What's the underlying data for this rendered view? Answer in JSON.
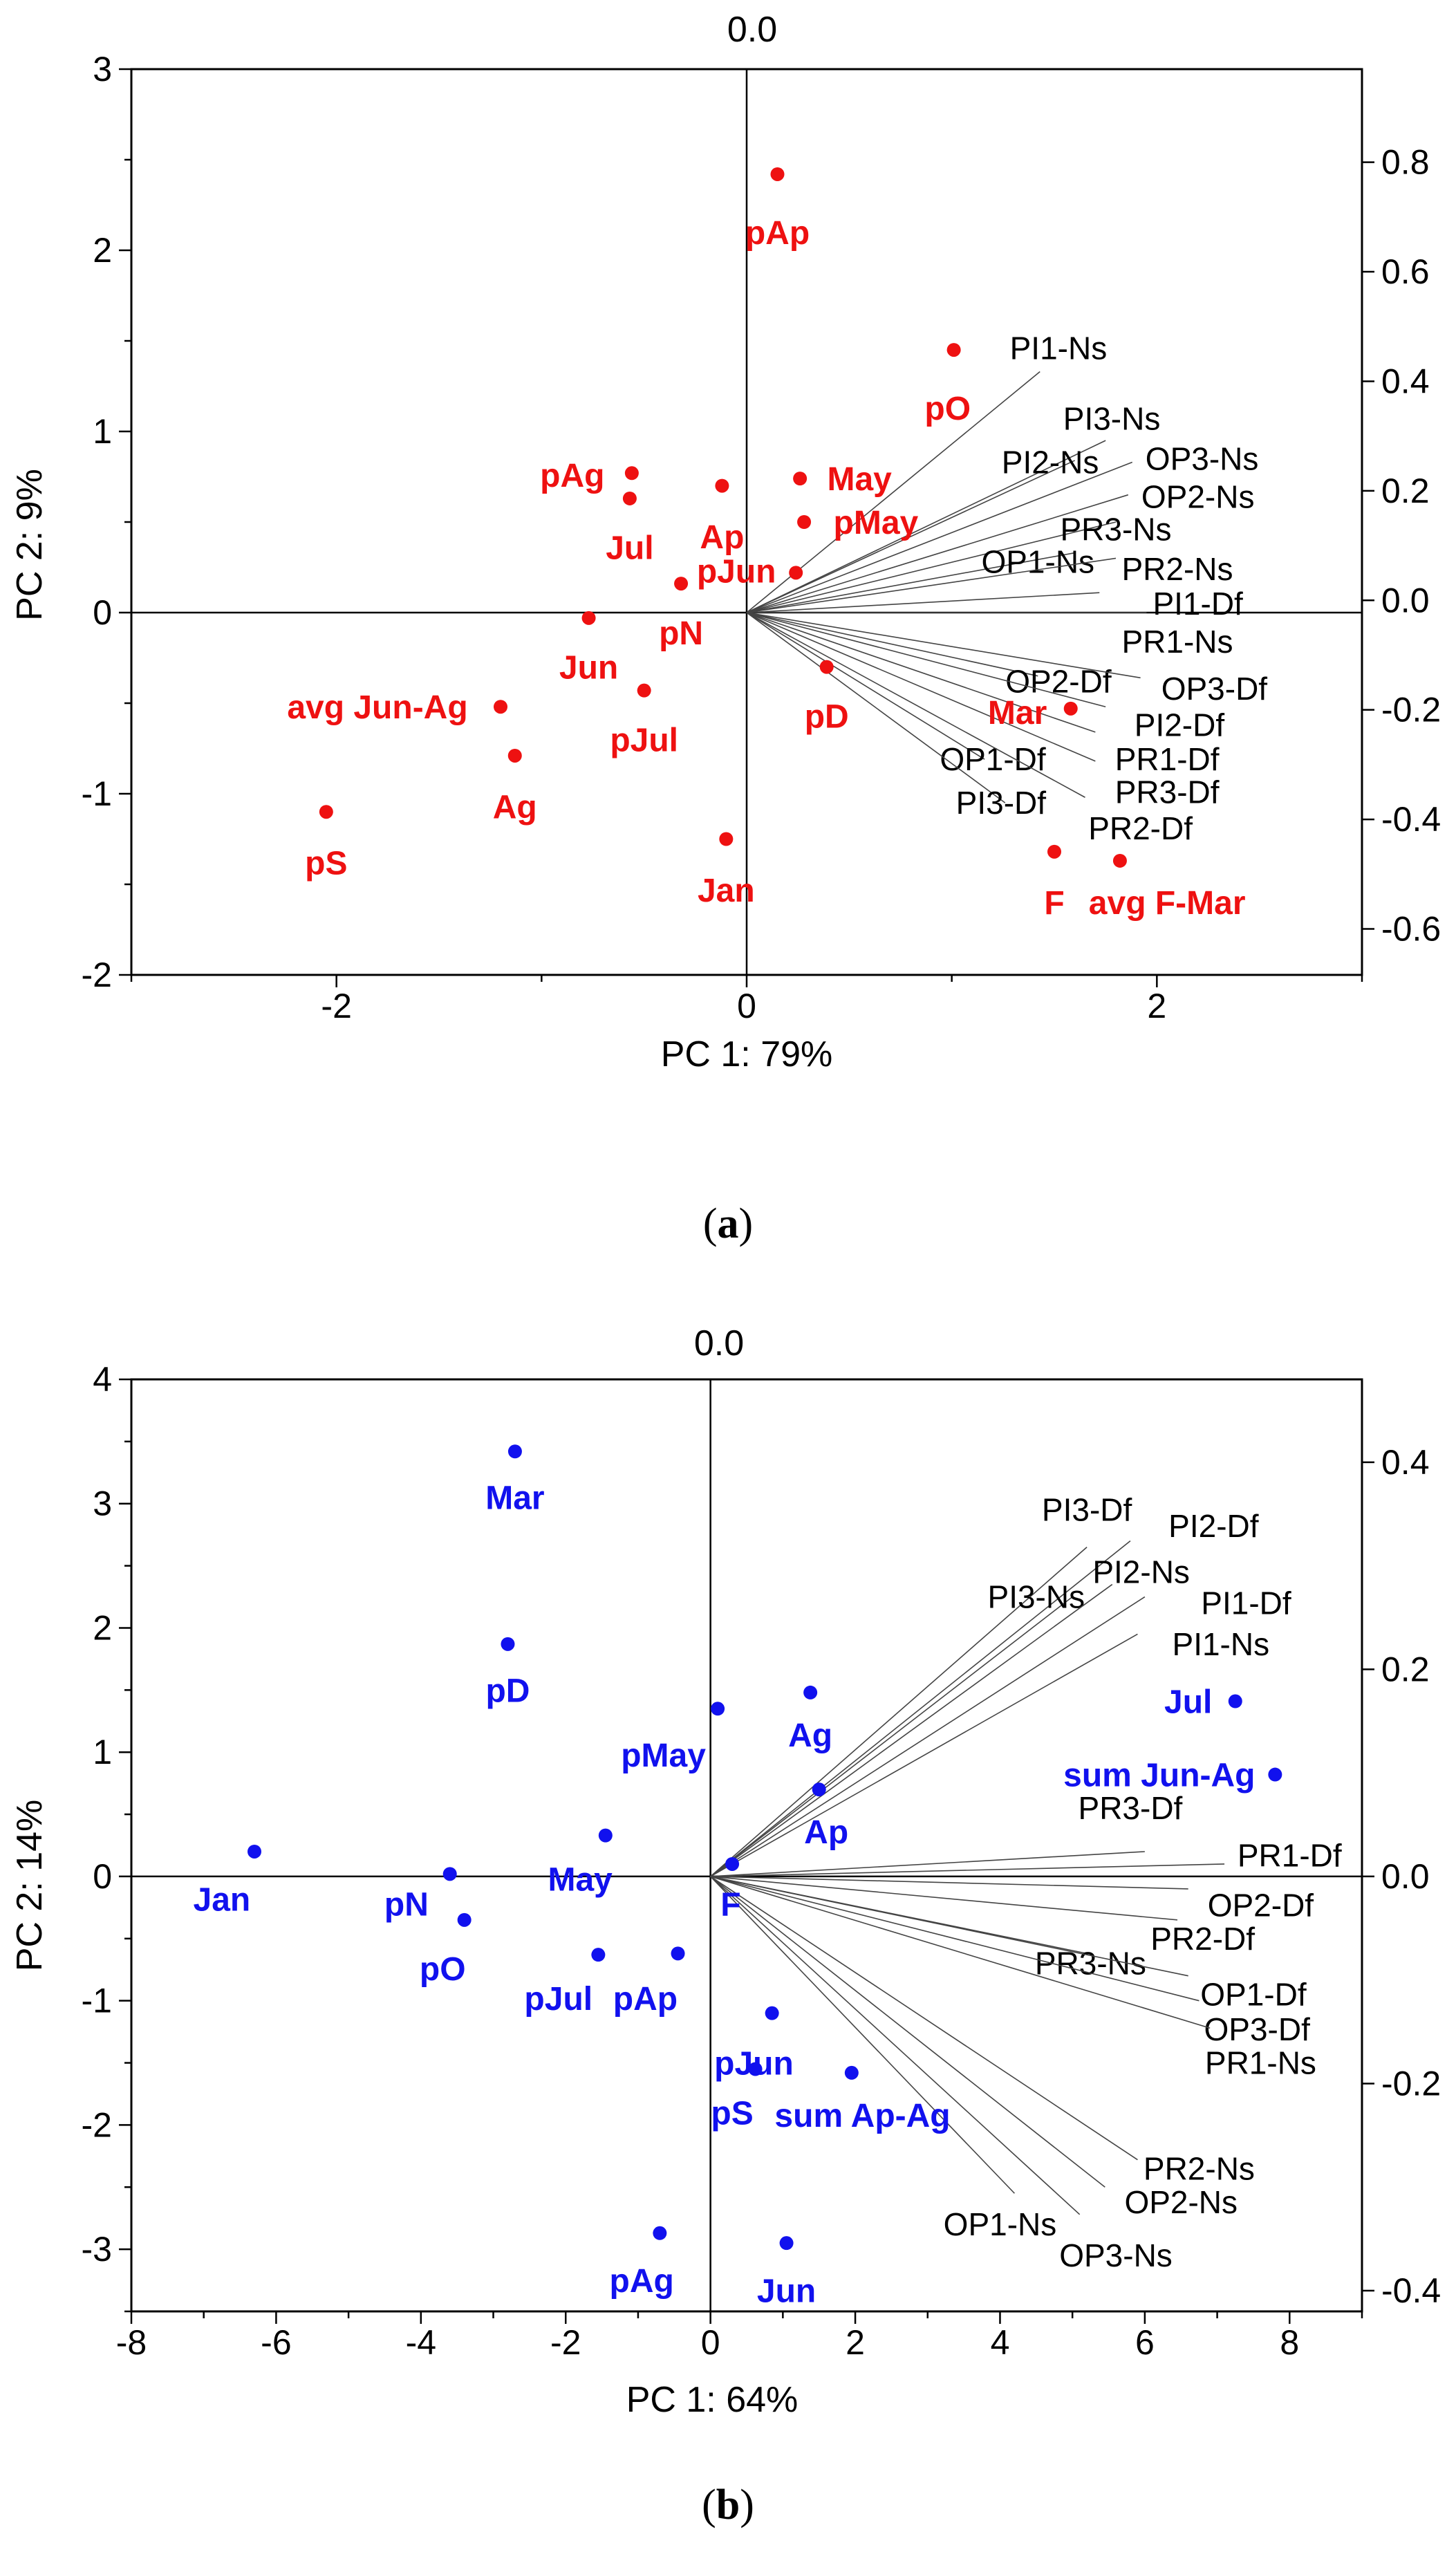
{
  "chart_data": [
    {
      "panel": "(a)",
      "type": "scatter",
      "xlabel": "PC 1: 79%",
      "ylabel": "PC 2: 9%",
      "top_axis_label": "0.0",
      "xlim": [
        -3,
        3
      ],
      "ylim": [
        -2,
        3
      ],
      "xticks": [
        -2,
        0,
        2
      ],
      "yticks": [
        -2,
        -1,
        0,
        1,
        2,
        3
      ],
      "right_ylim": [
        -0.684,
        0.97
      ],
      "right_yticks": [
        "0.8",
        "0.6",
        "0.4",
        "0.2",
        "0.0",
        "-0.2",
        "-0.4",
        "-0.6"
      ],
      "right_ytick_values": [
        0.8,
        0.6,
        0.4,
        0.2,
        0.0,
        -0.2,
        -0.4,
        -0.6
      ],
      "point_color": "#ee1111",
      "vector_color": "#444444",
      "points": [
        {
          "label": "pAp",
          "x": 0.15,
          "y": 2.42,
          "lx": 0.15,
          "ly": 2.1
        },
        {
          "label": "pO",
          "x": 1.01,
          "y": 1.45,
          "lx": 0.98,
          "ly": 1.13
        },
        {
          "label": "pAg",
          "x": -0.56,
          "y": 0.77,
          "lx": -0.85,
          "ly": 0.76
        },
        {
          "label": "Jul",
          "x": -0.57,
          "y": 0.63,
          "lx": -0.57,
          "ly": 0.36
        },
        {
          "label": "Ap",
          "x": -0.12,
          "y": 0.7,
          "lx": -0.12,
          "ly": 0.42
        },
        {
          "label": "May",
          "x": 0.26,
          "y": 0.74,
          "lx": 0.55,
          "ly": 0.74
        },
        {
          "label": "pMay",
          "x": 0.28,
          "y": 0.5,
          "lx": 0.63,
          "ly": 0.5
        },
        {
          "label": "pJun",
          "x": 0.24,
          "y": 0.22,
          "lx": -0.05,
          "ly": 0.23
        },
        {
          "label": "pN",
          "x": -0.32,
          "y": 0.16,
          "lx": -0.32,
          "ly": -0.11
        },
        {
          "label": "Jun",
          "x": -0.77,
          "y": -0.03,
          "lx": -0.77,
          "ly": -0.3
        },
        {
          "label": "pD",
          "x": 0.39,
          "y": -0.3,
          "lx": 0.39,
          "ly": -0.57
        },
        {
          "label": "pJul",
          "x": -0.5,
          "y": -0.43,
          "lx": -0.5,
          "ly": -0.7
        },
        {
          "label": "avg Jun-Ag",
          "x": -1.2,
          "y": -0.52,
          "lx": -1.8,
          "ly": -0.52
        },
        {
          "label": "Ag",
          "x": -1.13,
          "y": -0.79,
          "lx": -1.13,
          "ly": -1.07
        },
        {
          "label": "pS",
          "x": -2.05,
          "y": -1.1,
          "lx": -2.05,
          "ly": -1.38
        },
        {
          "label": "Jan",
          "x": -0.1,
          "y": -1.25,
          "lx": -0.1,
          "ly": -1.53
        },
        {
          "label": "Mar",
          "x": 1.58,
          "y": -0.53,
          "lx": 1.32,
          "ly": -0.55
        },
        {
          "label": "F",
          "x": 1.5,
          "y": -1.32,
          "lx": 1.5,
          "ly": -1.6
        },
        {
          "label": "avg F-Mar",
          "x": 1.82,
          "y": -1.37,
          "lx": 2.05,
          "ly": -1.6
        }
      ],
      "vectors": [
        {
          "label": "PI1-Ns",
          "x": 1.43,
          "y": 1.33,
          "lx": 1.52,
          "ly": 1.46
        },
        {
          "label": "PI3-Ns",
          "x": 1.75,
          "y": 0.95,
          "lx": 1.78,
          "ly": 1.07
        },
        {
          "label": "PI2-Ns",
          "x": 1.6,
          "y": 0.84,
          "lx": 1.48,
          "ly": 0.83
        },
        {
          "label": "OP3-Ns",
          "x": 1.88,
          "y": 0.83,
          "lx": 2.22,
          "ly": 0.85
        },
        {
          "label": "OP2-Ns",
          "x": 1.86,
          "y": 0.65,
          "lx": 2.2,
          "ly": 0.64
        },
        {
          "label": "PR3-Ns",
          "x": 1.8,
          "y": 0.5,
          "lx": 1.8,
          "ly": 0.46
        },
        {
          "label": "OP1-Ns",
          "x": 1.6,
          "y": 0.33,
          "lx": 1.42,
          "ly": 0.28
        },
        {
          "label": "PR2-Ns",
          "x": 1.8,
          "y": 0.3,
          "lx": 2.1,
          "ly": 0.24
        },
        {
          "label": "PI1-Df",
          "x": 1.72,
          "y": 0.11,
          "lx": 2.2,
          "ly": 0.05
        },
        {
          "label": "PR1-Ns",
          "x": 1.95,
          "y": 0.0,
          "lx": 2.1,
          "ly": -0.16
        },
        {
          "label": "OP2-Df",
          "x": 1.42,
          "y": -0.35,
          "lx": 1.52,
          "ly": -0.38
        },
        {
          "label": "OP3-Df",
          "x": 1.92,
          "y": -0.36,
          "lx": 2.28,
          "ly": -0.42
        },
        {
          "label": "PI2-Df",
          "x": 1.75,
          "y": -0.52,
          "lx": 2.11,
          "ly": -0.62
        },
        {
          "label": "PR1-Df",
          "x": 1.7,
          "y": -0.66,
          "lx": 2.05,
          "ly": -0.81
        },
        {
          "label": "OP1-Df",
          "x": 1.16,
          "y": -0.81,
          "lx": 1.2,
          "ly": -0.81
        },
        {
          "label": "PR3-Df",
          "x": 1.7,
          "y": -0.82,
          "lx": 2.05,
          "ly": -0.99
        },
        {
          "label": "PI3-Df",
          "x": 1.26,
          "y": -1.05,
          "lx": 1.24,
          "ly": -1.05
        },
        {
          "label": "PR2-Df",
          "x": 1.65,
          "y": -1.02,
          "lx": 1.92,
          "ly": -1.19
        }
      ]
    },
    {
      "panel": "(b)",
      "type": "scatter",
      "xlabel": "PC 1: 64%",
      "ylabel": "PC 2: 14%",
      "top_axis_label": "0.0",
      "xlim": [
        -8,
        9
      ],
      "ylim": [
        -3.5,
        4
      ],
      "xticks": [
        -8,
        -6,
        -4,
        -2,
        0,
        2,
        4,
        6,
        8
      ],
      "yticks": [
        -3,
        -2,
        -1,
        0,
        1,
        2,
        3,
        4
      ],
      "right_ylim": [
        -0.42,
        0.48
      ],
      "right_yticks": [
        "0.4",
        "0.2",
        "0.0",
        "-0.2",
        "-0.4"
      ],
      "right_ytick_values": [
        0.4,
        0.2,
        0.0,
        -0.2,
        -0.4
      ],
      "point_color": "#1111ee",
      "vector_color": "#444444",
      "points": [
        {
          "label": "Mar",
          "x": -2.7,
          "y": 3.42,
          "lx": -2.7,
          "ly": 3.05
        },
        {
          "label": "pD",
          "x": -2.8,
          "y": 1.87,
          "lx": -2.8,
          "ly": 1.5
        },
        {
          "label": "pMay",
          "x": 0.1,
          "y": 1.35,
          "lx": -0.65,
          "ly": 0.98
        },
        {
          "label": "Ag",
          "x": 1.38,
          "y": 1.48,
          "lx": 1.38,
          "ly": 1.14
        },
        {
          "label": "Ap",
          "x": 1.5,
          "y": 0.7,
          "lx": 1.6,
          "ly": 0.36
        },
        {
          "label": "Jul",
          "x": 7.25,
          "y": 1.41,
          "lx": 6.6,
          "ly": 1.41
        },
        {
          "label": "sum Jun-Ag",
          "x": 7.8,
          "y": 0.82,
          "lx": 6.2,
          "ly": 0.82
        },
        {
          "label": "Jan",
          "x": -6.3,
          "y": 0.2,
          "lx": -6.75,
          "ly": -0.18
        },
        {
          "label": "pN",
          "x": -3.6,
          "y": 0.02,
          "lx": -4.2,
          "ly": -0.22
        },
        {
          "label": "pO",
          "x": -3.4,
          "y": -0.35,
          "lx": -3.7,
          "ly": -0.74
        },
        {
          "label": "May",
          "x": -1.45,
          "y": 0.33,
          "lx": -1.8,
          "ly": -0.02
        },
        {
          "label": "F",
          "x": 0.3,
          "y": 0.1,
          "lx": 0.28,
          "ly": -0.22
        },
        {
          "label": "pJul",
          "x": -1.55,
          "y": -0.63,
          "lx": -2.1,
          "ly": -0.98
        },
        {
          "label": "pAp",
          "x": -0.45,
          "y": -0.62,
          "lx": -0.9,
          "ly": -0.98
        },
        {
          "label": "pJun",
          "x": 0.85,
          "y": -1.1,
          "lx": 0.6,
          "ly": -1.5
        },
        {
          "label": "pS",
          "x": 0.62,
          "y": -1.55,
          "lx": 0.3,
          "ly": -1.9
        },
        {
          "label": "sum Ap-Ag",
          "x": 1.95,
          "y": -1.58,
          "lx": 2.1,
          "ly": -1.92
        },
        {
          "label": "pAg",
          "x": -0.7,
          "y": -2.87,
          "lx": -0.95,
          "ly": -3.25
        },
        {
          "label": "Jun",
          "x": 1.05,
          "y": -2.95,
          "lx": 1.05,
          "ly": -3.33
        }
      ],
      "vectors": [
        {
          "label": "PI3-Df",
          "x": 5.2,
          "y": 2.65,
          "lx": 5.2,
          "ly": 2.95
        },
        {
          "label": "PI2-Df",
          "x": 5.8,
          "y": 2.7,
          "lx": 6.95,
          "ly": 2.82
        },
        {
          "label": "PI3-Ns",
          "x": 5.0,
          "y": 2.25,
          "lx": 4.5,
          "ly": 2.25
        },
        {
          "label": "PI2-Ns",
          "x": 5.55,
          "y": 2.35,
          "lx": 5.95,
          "ly": 2.45
        },
        {
          "label": "PI1-Df",
          "x": 6.0,
          "y": 2.25,
          "lx": 7.4,
          "ly": 2.2
        },
        {
          "label": "PI1-Ns",
          "x": 5.9,
          "y": 1.95,
          "lx": 7.05,
          "ly": 1.87
        },
        {
          "label": "PR3-Df",
          "x": 6.0,
          "y": 0.2,
          "lx": 5.8,
          "ly": 0.55
        },
        {
          "label": "PR1-Df",
          "x": 7.1,
          "y": 0.1,
          "lx": 8.0,
          "ly": 0.17
        },
        {
          "label": "OP2-Df",
          "x": 6.6,
          "y": -0.1,
          "lx": 7.6,
          "ly": -0.23
        },
        {
          "label": "PR2-Df",
          "x": 6.45,
          "y": -0.35,
          "lx": 6.8,
          "ly": -0.5
        },
        {
          "label": "PR3-Ns",
          "x": 5.2,
          "y": -0.62,
          "lx": 5.25,
          "ly": -0.7
        },
        {
          "label": "OP1-Df",
          "x": 6.6,
          "y": -0.8,
          "lx": 7.5,
          "ly": -0.95
        },
        {
          "label": "OP3-Df",
          "x": 6.75,
          "y": -1.0,
          "lx": 7.55,
          "ly": -1.23
        },
        {
          "label": "PR1-Ns",
          "x": 6.9,
          "y": -1.22,
          "lx": 7.6,
          "ly": -1.5
        },
        {
          "label": "PR2-Ns",
          "x": 5.9,
          "y": -2.28,
          "lx": 6.75,
          "ly": -2.35
        },
        {
          "label": "OP2-Ns",
          "x": 5.45,
          "y": -2.5,
          "lx": 6.5,
          "ly": -2.62
        },
        {
          "label": "OP1-Ns",
          "x": 4.2,
          "y": -2.55,
          "lx": 4.0,
          "ly": -2.8
        },
        {
          "label": "OP3-Ns",
          "x": 5.1,
          "y": -2.72,
          "lx": 5.6,
          "ly": -3.05
        }
      ]
    }
  ]
}
